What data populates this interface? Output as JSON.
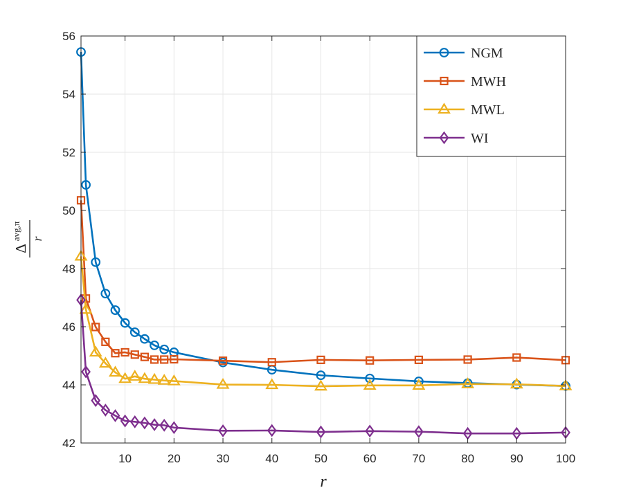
{
  "chart_data": {
    "type": "line",
    "title": "",
    "xlabel": "r",
    "ylabel": {
      "delta": "Δ",
      "superscript": "avg,π",
      "denominator": "r"
    },
    "xlim": [
      1,
      100
    ],
    "ylim": [
      42,
      56
    ],
    "xticks": [
      10,
      20,
      30,
      40,
      50,
      60,
      70,
      80,
      90,
      100
    ],
    "yticks": [
      42,
      44,
      46,
      48,
      50,
      52,
      54,
      56
    ],
    "grid": true,
    "legend_position": "top-right",
    "x": [
      1,
      2,
      4,
      6,
      8,
      10,
      12,
      14,
      16,
      18,
      20,
      30,
      40,
      50,
      60,
      70,
      80,
      90,
      100
    ],
    "series": [
      {
        "name": "NGM",
        "color": "#0072BD",
        "marker": "circle",
        "values": [
          55.45,
          50.88,
          48.22,
          47.14,
          46.57,
          46.13,
          45.81,
          45.58,
          45.36,
          45.22,
          45.12,
          44.77,
          44.52,
          44.33,
          44.22,
          44.12,
          44.06,
          44.01,
          43.96
        ]
      },
      {
        "name": "MWH",
        "color": "#D95319",
        "marker": "square",
        "values": [
          50.35,
          46.97,
          45.99,
          45.48,
          45.09,
          45.12,
          45.04,
          44.96,
          44.87,
          44.87,
          44.88,
          44.83,
          44.78,
          44.86,
          44.84,
          44.86,
          44.87,
          44.94,
          44.85
        ]
      },
      {
        "name": "MWL",
        "color": "#EDB120",
        "marker": "triangle",
        "values": [
          48.42,
          46.59,
          45.12,
          44.74,
          44.43,
          44.21,
          44.29,
          44.21,
          44.18,
          44.15,
          44.13,
          44.01,
          44.0,
          43.95,
          43.98,
          43.98,
          44.03,
          44.02,
          43.96
        ]
      },
      {
        "name": "WI",
        "color": "#7E2F8E",
        "marker": "diamond",
        "values": [
          46.92,
          44.45,
          43.46,
          43.13,
          42.94,
          42.76,
          42.73,
          42.69,
          42.63,
          42.61,
          42.53,
          42.42,
          42.43,
          42.38,
          42.41,
          42.39,
          42.33,
          42.33,
          42.36
        ]
      }
    ]
  }
}
